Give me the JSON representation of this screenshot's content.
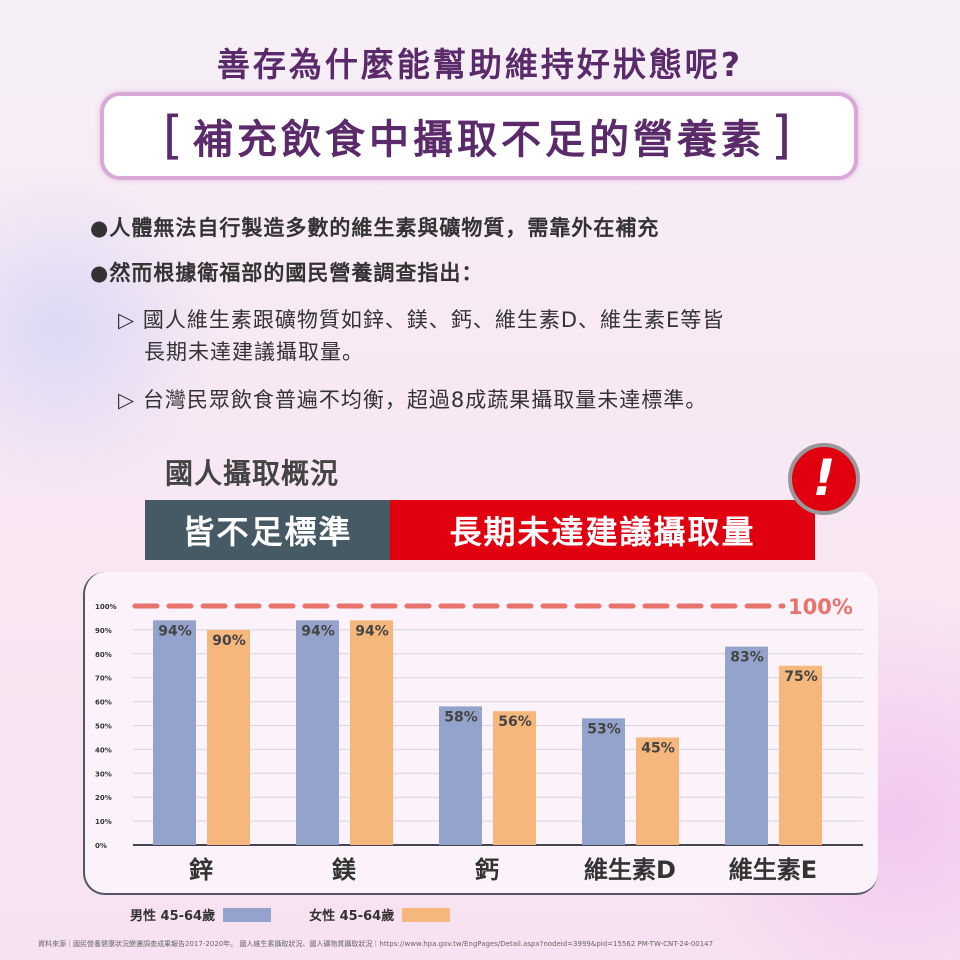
{
  "title": "善存為什麼能幫助維持好狀態呢?",
  "subtitle": {
    "open": "[",
    "text": "補充飲食中攝取不足的營養素",
    "close": "]"
  },
  "bullets": [
    {
      "marker": "●",
      "text": "人體無法自行製造多數的維生素與礦物質，需靠外在補充"
    },
    {
      "marker": "●",
      "text": "然而根據衛福部的國民營養調查指出："
    }
  ],
  "subpoints": [
    {
      "marker": "▷",
      "lines": [
        "國人維生素跟礦物質如鋅、鎂、鈣、維生素D、維生素E等皆",
        "長期未達建議攝取量。"
      ]
    },
    {
      "marker": "▷",
      "lines": [
        "台灣民眾飲食普遍不均衡，超過8成蔬果攝取量未達標準。"
      ]
    }
  ],
  "section": {
    "heading": "國人攝取概況",
    "label_gray": "皆不足標準",
    "label_red": "長期未達建議攝取量",
    "alert_icon": "exclamation-icon",
    "alert_glyph": "!"
  },
  "colors": {
    "male": "#94a3cb",
    "female": "#f5b77c",
    "target": "#e8736b",
    "red": "#e0000f",
    "gray": "#465a66",
    "title": "#5a2a6a"
  },
  "chart_data": {
    "type": "bar",
    "categories": [
      "鋅",
      "鎂",
      "鈣",
      "維生素D",
      "維生素E"
    ],
    "series": [
      {
        "name": "男性 45-64歲",
        "values": [
          94,
          94,
          58,
          53,
          83
        ],
        "labels": [
          "94%",
          "94%",
          "58%",
          "53%",
          "83%"
        ]
      },
      {
        "name": "女性 45-64歲",
        "values": [
          90,
          94,
          56,
          45,
          75
        ],
        "labels": [
          "90%",
          "94%",
          "56%",
          "45%",
          "75%"
        ]
      }
    ],
    "yticks": [
      "0%",
      "10%",
      "20%",
      "30%",
      "40%",
      "50%",
      "60%",
      "70%",
      "80%",
      "90%",
      "100%"
    ],
    "ylim": [
      0,
      100
    ],
    "grid": true,
    "reference_line": {
      "value": 100,
      "label": "100%",
      "style": "dashed"
    },
    "legend": "bottom-left"
  },
  "footer": "資料來源｜國民營養健康狀況變遷調查成果報告2017-2020年。 國人維生素攝取狀況、國人礦物質攝取狀況｜https://www.hpa.gov.tw/EngPages/Detail.aspx?nodeid=3999&pid=15562 PM-TW-CNT-24-00147"
}
